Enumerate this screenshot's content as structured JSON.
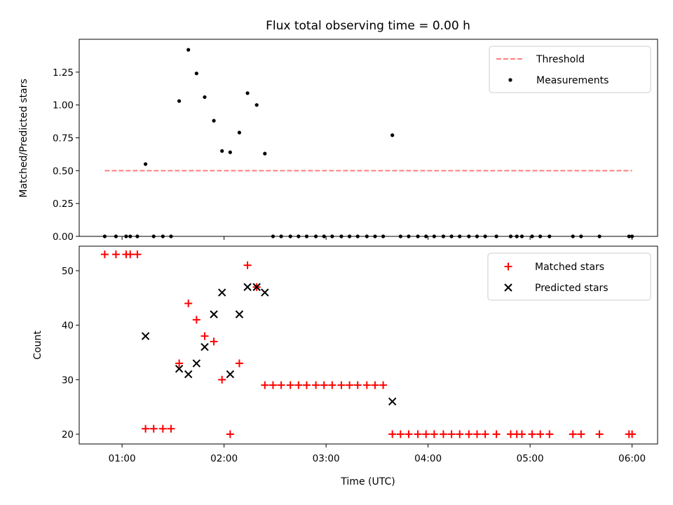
{
  "chart_data": [
    {
      "type": "scatter",
      "title": "Flux total observing time = 0.00 h",
      "xlabel": "",
      "ylabel": "Matched/Predicted stars",
      "xlim": [
        0.58,
        6.25
      ],
      "ylim": [
        0,
        1.5
      ],
      "yticks": [
        0.0,
        0.25,
        0.5,
        0.75,
        1.0,
        1.25
      ],
      "ytick_labels": [
        "0.00",
        "0.25",
        "0.50",
        "0.75",
        "1.00",
        "1.25"
      ],
      "xticks": [
        1,
        2,
        3,
        4,
        5,
        6
      ],
      "xtick_labels": [
        "",
        "",
        "",
        "",
        "",
        ""
      ],
      "threshold": {
        "label": "Threshold",
        "y": 0.5,
        "x_start": 0.83,
        "x_end": 6.0,
        "color": "#ff7f7f"
      },
      "measurements": {
        "label": "Measurements",
        "color": "#000000",
        "points": [
          {
            "x": 0.83,
            "y": 0.0
          },
          {
            "x": 0.94,
            "y": 0.0
          },
          {
            "x": 1.04,
            "y": 0.0
          },
          {
            "x": 1.08,
            "y": 0.0
          },
          {
            "x": 1.15,
            "y": 0.0
          },
          {
            "x": 1.23,
            "y": 0.55
          },
          {
            "x": 1.31,
            "y": 0.0
          },
          {
            "x": 1.4,
            "y": 0.0
          },
          {
            "x": 1.48,
            "y": 0.0
          },
          {
            "x": 1.56,
            "y": 1.03
          },
          {
            "x": 1.65,
            "y": 1.42
          },
          {
            "x": 1.73,
            "y": 1.24
          },
          {
            "x": 1.81,
            "y": 1.06
          },
          {
            "x": 1.9,
            "y": 0.88
          },
          {
            "x": 1.98,
            "y": 0.65
          },
          {
            "x": 2.06,
            "y": 0.64
          },
          {
            "x": 2.15,
            "y": 0.79
          },
          {
            "x": 2.23,
            "y": 1.09
          },
          {
            "x": 2.32,
            "y": 1.0
          },
          {
            "x": 2.4,
            "y": 0.63
          },
          {
            "x": 2.48,
            "y": 0.0
          },
          {
            "x": 2.56,
            "y": 0.0
          },
          {
            "x": 2.65,
            "y": 0.0
          },
          {
            "x": 2.73,
            "y": 0.0
          },
          {
            "x": 2.81,
            "y": 0.0
          },
          {
            "x": 2.9,
            "y": 0.0
          },
          {
            "x": 2.98,
            "y": 0.0
          },
          {
            "x": 3.06,
            "y": 0.0
          },
          {
            "x": 3.15,
            "y": 0.0
          },
          {
            "x": 3.23,
            "y": 0.0
          },
          {
            "x": 3.31,
            "y": 0.0
          },
          {
            "x": 3.4,
            "y": 0.0
          },
          {
            "x": 3.48,
            "y": 0.0
          },
          {
            "x": 3.56,
            "y": 0.0
          },
          {
            "x": 3.65,
            "y": 0.77
          },
          {
            "x": 3.73,
            "y": 0.0
          },
          {
            "x": 3.81,
            "y": 0.0
          },
          {
            "x": 3.9,
            "y": 0.0
          },
          {
            "x": 3.98,
            "y": 0.0
          },
          {
            "x": 4.06,
            "y": 0.0
          },
          {
            "x": 4.15,
            "y": 0.0
          },
          {
            "x": 4.23,
            "y": 0.0
          },
          {
            "x": 4.31,
            "y": 0.0
          },
          {
            "x": 4.4,
            "y": 0.0
          },
          {
            "x": 4.48,
            "y": 0.0
          },
          {
            "x": 4.56,
            "y": 0.0
          },
          {
            "x": 4.67,
            "y": 0.0
          },
          {
            "x": 4.81,
            "y": 0.0
          },
          {
            "x": 4.87,
            "y": 0.0
          },
          {
            "x": 4.92,
            "y": 0.0
          },
          {
            "x": 5.02,
            "y": 0.0
          },
          {
            "x": 5.1,
            "y": 0.0
          },
          {
            "x": 5.19,
            "y": 0.0
          },
          {
            "x": 5.42,
            "y": 0.0
          },
          {
            "x": 5.5,
            "y": 0.0
          },
          {
            "x": 5.68,
            "y": 0.0
          },
          {
            "x": 5.97,
            "y": 0.0
          },
          {
            "x": 6.0,
            "y": 0.0
          }
        ]
      },
      "legend_position": "upper right"
    },
    {
      "type": "scatter",
      "title": "",
      "xlabel": "Time (UTC)",
      "ylabel": "Count",
      "xlim": [
        0.58,
        6.25
      ],
      "ylim": [
        18.2,
        54.5
      ],
      "yticks": [
        20,
        30,
        40,
        50
      ],
      "ytick_labels": [
        "20",
        "30",
        "40",
        "50"
      ],
      "xticks": [
        1,
        2,
        3,
        4,
        5,
        6
      ],
      "xtick_labels": [
        "01:00",
        "02:00",
        "03:00",
        "04:00",
        "05:00",
        "06:00"
      ],
      "series": [
        {
          "name": "Matched stars",
          "marker": "plus",
          "color": "#ff0000",
          "points": [
            {
              "x": 0.83,
              "y": 53
            },
            {
              "x": 0.94,
              "y": 53
            },
            {
              "x": 1.04,
              "y": 53
            },
            {
              "x": 1.08,
              "y": 53
            },
            {
              "x": 1.15,
              "y": 53
            },
            {
              "x": 1.23,
              "y": 21
            },
            {
              "x": 1.31,
              "y": 21
            },
            {
              "x": 1.4,
              "y": 21
            },
            {
              "x": 1.48,
              "y": 21
            },
            {
              "x": 1.56,
              "y": 33
            },
            {
              "x": 1.65,
              "y": 44
            },
            {
              "x": 1.73,
              "y": 41
            },
            {
              "x": 1.81,
              "y": 38
            },
            {
              "x": 1.9,
              "y": 37
            },
            {
              "x": 1.98,
              "y": 30
            },
            {
              "x": 2.06,
              "y": 20
            },
            {
              "x": 2.15,
              "y": 33
            },
            {
              "x": 2.23,
              "y": 51
            },
            {
              "x": 2.32,
              "y": 47
            },
            {
              "x": 2.4,
              "y": 29
            },
            {
              "x": 2.48,
              "y": 29
            },
            {
              "x": 2.56,
              "y": 29
            },
            {
              "x": 2.65,
              "y": 29
            },
            {
              "x": 2.73,
              "y": 29
            },
            {
              "x": 2.81,
              "y": 29
            },
            {
              "x": 2.9,
              "y": 29
            },
            {
              "x": 2.98,
              "y": 29
            },
            {
              "x": 3.06,
              "y": 29
            },
            {
              "x": 3.15,
              "y": 29
            },
            {
              "x": 3.23,
              "y": 29
            },
            {
              "x": 3.31,
              "y": 29
            },
            {
              "x": 3.4,
              "y": 29
            },
            {
              "x": 3.48,
              "y": 29
            },
            {
              "x": 3.56,
              "y": 29
            },
            {
              "x": 3.65,
              "y": 20
            },
            {
              "x": 3.73,
              "y": 20
            },
            {
              "x": 3.81,
              "y": 20
            },
            {
              "x": 3.9,
              "y": 20
            },
            {
              "x": 3.98,
              "y": 20
            },
            {
              "x": 4.06,
              "y": 20
            },
            {
              "x": 4.15,
              "y": 20
            },
            {
              "x": 4.23,
              "y": 20
            },
            {
              "x": 4.31,
              "y": 20
            },
            {
              "x": 4.4,
              "y": 20
            },
            {
              "x": 4.48,
              "y": 20
            },
            {
              "x": 4.56,
              "y": 20
            },
            {
              "x": 4.67,
              "y": 20
            },
            {
              "x": 4.81,
              "y": 20
            },
            {
              "x": 4.87,
              "y": 20
            },
            {
              "x": 4.92,
              "y": 20
            },
            {
              "x": 5.02,
              "y": 20
            },
            {
              "x": 5.1,
              "y": 20
            },
            {
              "x": 5.19,
              "y": 20
            },
            {
              "x": 5.42,
              "y": 20
            },
            {
              "x": 5.5,
              "y": 20
            },
            {
              "x": 5.68,
              "y": 20
            },
            {
              "x": 5.97,
              "y": 20
            },
            {
              "x": 6.0,
              "y": 20
            }
          ]
        },
        {
          "name": "Predicted stars",
          "marker": "x",
          "color": "#000000",
          "points": [
            {
              "x": 1.23,
              "y": 38
            },
            {
              "x": 1.56,
              "y": 32
            },
            {
              "x": 1.65,
              "y": 31
            },
            {
              "x": 1.73,
              "y": 33
            },
            {
              "x": 1.81,
              "y": 36
            },
            {
              "x": 1.9,
              "y": 42
            },
            {
              "x": 1.98,
              "y": 46
            },
            {
              "x": 2.06,
              "y": 31
            },
            {
              "x": 2.15,
              "y": 42
            },
            {
              "x": 2.23,
              "y": 47
            },
            {
              "x": 2.32,
              "y": 47
            },
            {
              "x": 2.4,
              "y": 46
            },
            {
              "x": 3.65,
              "y": 26
            }
          ]
        }
      ],
      "legend_position": "upper right"
    }
  ]
}
